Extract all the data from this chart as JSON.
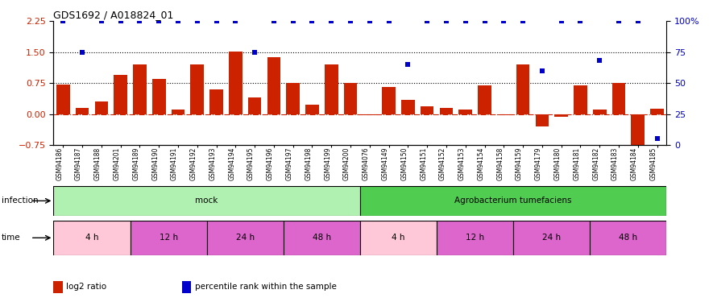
{
  "title": "GDS1692 / A018824_01",
  "samples": [
    "GSM94186",
    "GSM94187",
    "GSM94188",
    "GSM94201",
    "GSM94189",
    "GSM94190",
    "GSM94191",
    "GSM94192",
    "GSM94193",
    "GSM94194",
    "GSM94195",
    "GSM94196",
    "GSM94197",
    "GSM94198",
    "GSM94199",
    "GSM94200",
    "GSM94076",
    "GSM94149",
    "GSM94150",
    "GSM94151",
    "GSM94152",
    "GSM94153",
    "GSM94154",
    "GSM94158",
    "GSM94159",
    "GSM94179",
    "GSM94180",
    "GSM94181",
    "GSM94182",
    "GSM94183",
    "GSM94184",
    "GSM94185"
  ],
  "log2_ratio": [
    0.72,
    0.15,
    0.3,
    0.95,
    1.2,
    0.85,
    0.1,
    1.2,
    0.6,
    1.52,
    0.4,
    1.38,
    0.75,
    0.22,
    1.2,
    0.75,
    -0.02,
    0.65,
    0.35,
    0.18,
    0.14,
    0.1,
    0.7,
    -0.03,
    1.2,
    -0.3,
    -0.06,
    0.7,
    0.1,
    0.75,
    -0.75,
    0.12
  ],
  "percentile_rank": [
    100,
    75,
    100,
    100,
    100,
    100,
    100,
    100,
    100,
    100,
    75,
    100,
    100,
    100,
    100,
    100,
    100,
    100,
    65,
    100,
    100,
    100,
    100,
    100,
    100,
    60,
    100,
    100,
    68,
    100,
    100,
    5
  ],
  "infection_groups": [
    {
      "label": "mock",
      "start": 0,
      "end": 16,
      "color": "#b0f0b0"
    },
    {
      "label": "Agrobacterium tumefaciens",
      "start": 16,
      "end": 32,
      "color": "#50cc50"
    }
  ],
  "time_groups": [
    {
      "label": "4 h",
      "start": 0,
      "end": 4,
      "color": "#ffc8d8"
    },
    {
      "label": "12 h",
      "start": 4,
      "end": 8,
      "color": "#dd66cc"
    },
    {
      "label": "24 h",
      "start": 8,
      "end": 12,
      "color": "#dd66cc"
    },
    {
      "label": "48 h",
      "start": 12,
      "end": 16,
      "color": "#dd66cc"
    },
    {
      "label": "4 h",
      "start": 16,
      "end": 20,
      "color": "#ffc8d8"
    },
    {
      "label": "12 h",
      "start": 20,
      "end": 24,
      "color": "#dd66cc"
    },
    {
      "label": "24 h",
      "start": 24,
      "end": 28,
      "color": "#dd66cc"
    },
    {
      "label": "48 h",
      "start": 28,
      "end": 32,
      "color": "#dd66cc"
    }
  ],
  "bar_color": "#CC2200",
  "dot_color": "#0000CC",
  "zero_line_color": "#CC2200",
  "hline_color": "black",
  "ylim_left": [
    -0.75,
    2.25
  ],
  "ylim_right": [
    0,
    100
  ],
  "yticks_left": [
    -0.75,
    0,
    0.75,
    1.5,
    2.25
  ],
  "yticks_right": [
    0,
    25,
    50,
    75,
    100
  ],
  "hlines": [
    0.75,
    1.5
  ],
  "legend_items": [
    {
      "label": "log2 ratio",
      "color": "#CC2200"
    },
    {
      "label": "percentile rank within the sample",
      "color": "#0000CC"
    }
  ]
}
